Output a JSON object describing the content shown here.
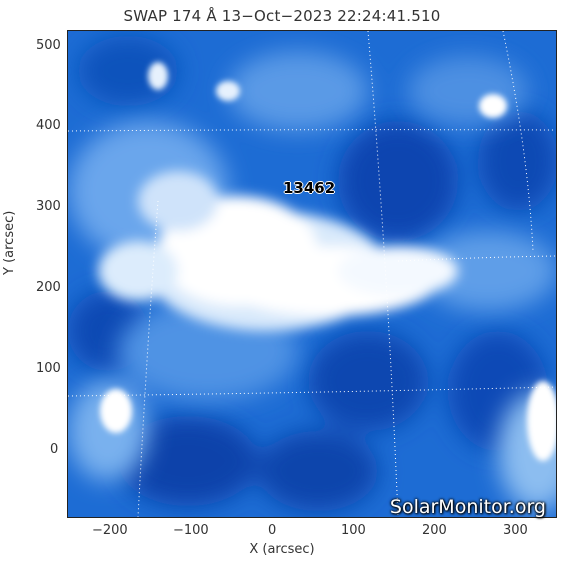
{
  "title": "SWAP 174 Å 13−Oct−2023 22:24:41.510",
  "image": {
    "instrument": "SWAP 174 Å",
    "colormap": [
      "#0a3fa8",
      "#1f6fd6",
      "#5b9ce8",
      "#a8cdf4",
      "#ffffff"
    ],
    "features": [
      {
        "type": "active-region",
        "label": "13462"
      }
    ]
  },
  "axes": {
    "xlabel": "X (arcsec)",
    "ylabel": "Y (arcsec)",
    "xlim": [
      -255,
      345
    ],
    "ylim": [
      -85,
      515
    ],
    "xticks": [
      "−200",
      "−100",
      "0",
      "100",
      "200",
      "300"
    ],
    "yticks": [
      "0",
      "100",
      "200",
      "300",
      "400",
      "500"
    ],
    "grid": "dotted"
  },
  "watermark": "SolarMonitor.org"
}
